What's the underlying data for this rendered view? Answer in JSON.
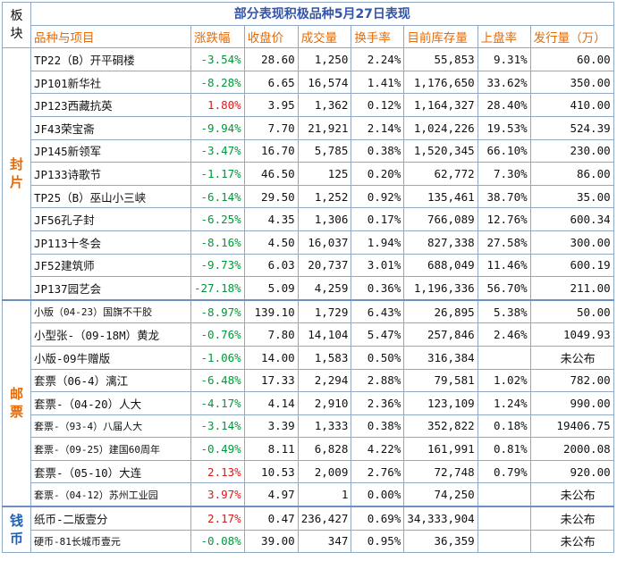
{
  "header": {
    "plate_label": "板块",
    "title": "部分表现积极品种5月27日表现",
    "columns": [
      "品种与项目",
      "涨跌幅",
      "收盘价",
      "成交量",
      "换手率",
      "目前库存量",
      "上盘率",
      "发行量（万）"
    ]
  },
  "groups": [
    {
      "name": "封片",
      "rows": [
        {
          "name": "TP22（B）开平硐楼",
          "change": "-3.54%",
          "dir": "neg",
          "close": "28.60",
          "volume": "1,250",
          "turnover": "2.24%",
          "stock": "55,853",
          "rate": "9.31%",
          "issue": "60.00"
        },
        {
          "name": "JP101新华社",
          "change": "-8.28%",
          "dir": "neg",
          "close": "6.65",
          "volume": "16,574",
          "turnover": "1.41%",
          "stock": "1,176,650",
          "rate": "33.62%",
          "issue": "350.00"
        },
        {
          "name": "JP123西藏抗英",
          "change": "1.80%",
          "dir": "pos",
          "close": "3.95",
          "volume": "1,362",
          "turnover": "0.12%",
          "stock": "1,164,327",
          "rate": "28.40%",
          "issue": "410.00"
        },
        {
          "name": "JF43荣宝斋",
          "change": "-9.94%",
          "dir": "neg",
          "close": "7.70",
          "volume": "21,921",
          "turnover": "2.14%",
          "stock": "1,024,226",
          "rate": "19.53%",
          "issue": "524.39"
        },
        {
          "name": "JP145新领军",
          "change": "-3.47%",
          "dir": "neg",
          "close": "16.70",
          "volume": "5,785",
          "turnover": "0.38%",
          "stock": "1,520,345",
          "rate": "66.10%",
          "issue": "230.00"
        },
        {
          "name": "JP133诗歌节",
          "change": "-1.17%",
          "dir": "neg",
          "close": "46.50",
          "volume": "125",
          "turnover": "0.20%",
          "stock": "62,772",
          "rate": "7.30%",
          "issue": "86.00"
        },
        {
          "name": "TP25（B）巫山小三峡",
          "change": "-6.14%",
          "dir": "neg",
          "close": "29.50",
          "volume": "1,252",
          "turnover": "0.92%",
          "stock": "135,461",
          "rate": "38.70%",
          "issue": "35.00"
        },
        {
          "name": "JF56孔子封",
          "change": "-6.25%",
          "dir": "neg",
          "close": "4.35",
          "volume": "1,306",
          "turnover": "0.17%",
          "stock": "766,089",
          "rate": "12.76%",
          "issue": "600.34"
        },
        {
          "name": "JP113十冬会",
          "change": "-8.16%",
          "dir": "neg",
          "close": "4.50",
          "volume": "16,037",
          "turnover": "1.94%",
          "stock": "827,338",
          "rate": "27.58%",
          "issue": "300.00"
        },
        {
          "name": "JF52建筑师",
          "change": "-9.73%",
          "dir": "neg",
          "close": "6.03",
          "volume": "20,737",
          "turnover": "3.01%",
          "stock": "688,049",
          "rate": "11.46%",
          "issue": "600.19"
        },
        {
          "name": "JP137园艺会",
          "change": "-27.18%",
          "dir": "neg",
          "close": "5.09",
          "volume": "4,259",
          "turnover": "0.36%",
          "stock": "1,196,336",
          "rate": "56.70%",
          "issue": "211.00"
        }
      ]
    },
    {
      "name": "邮票",
      "rows": [
        {
          "name": "小版（04-23）国旗不干胶",
          "change": "-8.97%",
          "dir": "neg",
          "close": "139.10",
          "volume": "1,729",
          "turnover": "6.43%",
          "stock": "26,895",
          "rate": "5.38%",
          "issue": "50.00",
          "small": true
        },
        {
          "name": "小型张-（09-18M）黄龙",
          "change": "-0.76%",
          "dir": "neg",
          "close": "7.80",
          "volume": "14,104",
          "turnover": "5.47%",
          "stock": "257,846",
          "rate": "2.46%",
          "issue": "1049.93"
        },
        {
          "name": "小版-09牛赠版",
          "change": "-1.06%",
          "dir": "neg",
          "close": "14.00",
          "volume": "1,583",
          "turnover": "0.50%",
          "stock": "316,384",
          "rate": "",
          "issue": "未公布"
        },
        {
          "name": "套票（06-4）漓江",
          "change": "-6.48%",
          "dir": "neg",
          "close": "17.33",
          "volume": "2,294",
          "turnover": "2.88%",
          "stock": "79,581",
          "rate": "1.02%",
          "issue": "782.00"
        },
        {
          "name": "套票-（04-20）人大",
          "change": "-4.17%",
          "dir": "neg",
          "close": "4.14",
          "volume": "2,910",
          "turnover": "2.36%",
          "stock": "123,109",
          "rate": "1.24%",
          "issue": "990.00"
        },
        {
          "name": "套票-（93-4）八届人大",
          "change": "-3.14%",
          "dir": "neg",
          "close": "3.39",
          "volume": "1,333",
          "turnover": "0.38%",
          "stock": "352,822",
          "rate": "0.18%",
          "issue": "19406.75",
          "small": true
        },
        {
          "name": "套票-（09-25）建国60周年",
          "change": "-0.49%",
          "dir": "neg",
          "close": "8.11",
          "volume": "6,828",
          "turnover": "4.22%",
          "stock": "161,991",
          "rate": "0.81%",
          "issue": "2000.08",
          "small": true
        },
        {
          "name": "套票-（05-10）大连",
          "change": "2.13%",
          "dir": "pos",
          "close": "10.53",
          "volume": "2,009",
          "turnover": "2.76%",
          "stock": "72,748",
          "rate": "0.79%",
          "issue": "920.00"
        },
        {
          "name": "套票-（04-12）苏州工业园",
          "change": "3.97%",
          "dir": "pos",
          "close": "4.97",
          "volume": "1",
          "turnover": "0.00%",
          "stock": "74,250",
          "rate": "",
          "issue": "未公布",
          "small": true
        }
      ]
    },
    {
      "name": "钱币",
      "rows": [
        {
          "name": "纸币-二版壹分",
          "change": "2.17%",
          "dir": "pos",
          "close": "0.47",
          "volume": "236,427",
          "turnover": "0.69%",
          "stock": "34,333,904",
          "rate": "",
          "issue": "未公布"
        },
        {
          "name": "硬币-81长城币壹元",
          "change": "-0.08%",
          "dir": "neg",
          "close": "39.00",
          "volume": "347",
          "turnover": "0.95%",
          "stock": "36,359",
          "rate": "",
          "issue": "未公布",
          "small": true
        }
      ]
    }
  ],
  "colors": {
    "positive": "#e01818",
    "negative": "#00993a",
    "header_text": "#e36c0a",
    "title_text": "#3355aa",
    "border": "#8fa9c6"
  }
}
